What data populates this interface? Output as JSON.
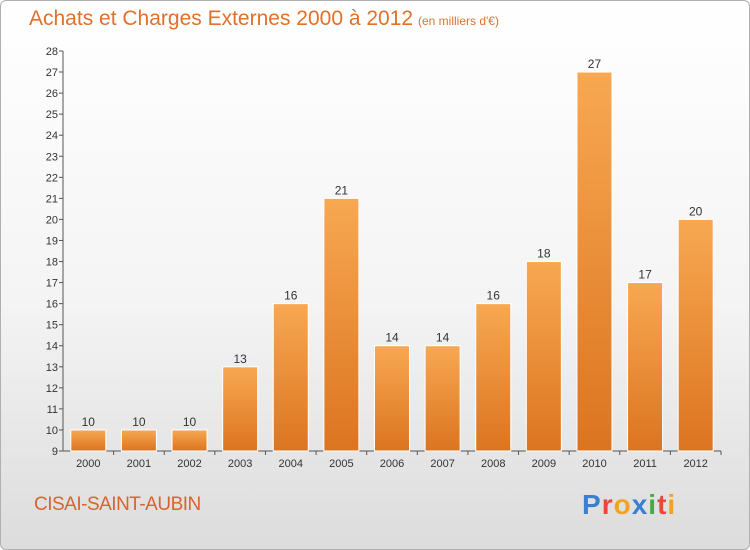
{
  "header": {
    "title": "Achats et Charges Externes 2000 à 2012",
    "subtitle": "(en milliers d'€)"
  },
  "footer": {
    "commune": "CISAI-SAINT-AUBIN",
    "logo": {
      "letters": [
        "P",
        "r",
        "o",
        "x",
        "i",
        "t",
        "i"
      ],
      "colors": [
        "#3a7fd0",
        "#e8493a",
        "#f2a325",
        "#3a7fd0",
        "#49a942",
        "#e8493a",
        "#f2a325"
      ]
    }
  },
  "chart_data": {
    "type": "bar",
    "title": "Achats et Charges Externes 2000 à 2012",
    "categories": [
      "2000",
      "2001",
      "2002",
      "2003",
      "2004",
      "2005",
      "2006",
      "2007",
      "2008",
      "2009",
      "2010",
      "2011",
      "2012"
    ],
    "values": [
      10,
      10,
      10,
      13,
      16,
      21,
      14,
      14,
      16,
      18,
      27,
      17,
      20
    ],
    "xlabel": "",
    "ylabel": "",
    "ylim": [
      9,
      28
    ],
    "yticks": [
      9,
      10,
      11,
      12,
      13,
      14,
      15,
      16,
      17,
      18,
      19,
      20,
      21,
      22,
      23,
      24,
      25,
      26,
      27,
      28
    ],
    "grid": false,
    "bar_color": "#f5a04a"
  }
}
